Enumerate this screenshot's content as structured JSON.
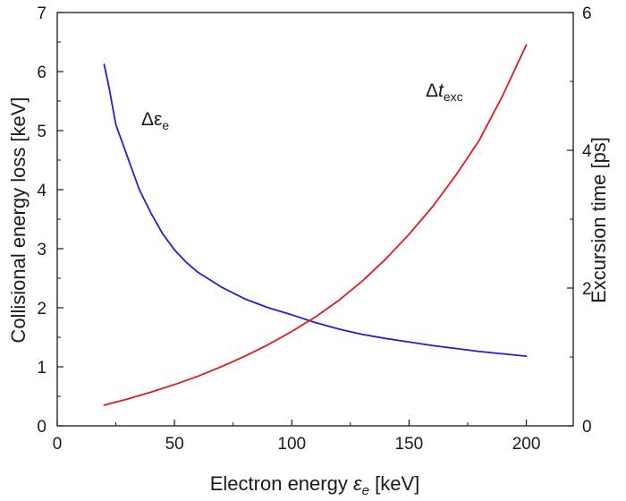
{
  "chart_data": {
    "type": "line",
    "x_axis": {
      "label": "Electron energy",
      "symbol": "ε",
      "symbol_sub": "e",
      "unit": "[keV]",
      "range": [
        0,
        220
      ],
      "ticks": [
        0,
        50,
        100,
        150,
        200
      ],
      "tick_labels": [
        "0",
        "50",
        "100",
        "150",
        "200"
      ]
    },
    "y_left": {
      "label": "Collisional energy loss [keV]",
      "range": [
        0,
        7
      ],
      "ticks": [
        0,
        1,
        2,
        3,
        4,
        5,
        6,
        7
      ],
      "tick_labels": [
        "0",
        "1",
        "2",
        "3",
        "4",
        "5",
        "6",
        "7"
      ]
    },
    "y_right": {
      "label": "Excursion time [ps]",
      "range": [
        0,
        6
      ],
      "ticks": [
        0,
        2,
        4,
        6
      ],
      "tick_labels": [
        "0",
        "2",
        "4",
        "6"
      ]
    },
    "series": [
      {
        "name": "Δε_e",
        "axis": "left",
        "color": "#1f1fd6",
        "x": [
          20,
          22,
          25,
          30,
          35,
          40,
          45,
          50,
          55,
          60,
          70,
          80,
          90,
          100,
          110,
          120,
          130,
          140,
          150,
          160,
          170,
          180,
          190,
          200
        ],
        "y": [
          6.12,
          5.75,
          5.1,
          4.55,
          4.0,
          3.6,
          3.25,
          2.98,
          2.77,
          2.6,
          2.35,
          2.15,
          2.0,
          1.88,
          1.75,
          1.64,
          1.55,
          1.48,
          1.42,
          1.36,
          1.31,
          1.26,
          1.22,
          1.18
        ]
      },
      {
        "name": "Δt_exc",
        "axis": "right",
        "color": "#e11919",
        "x": [
          20,
          30,
          40,
          50,
          60,
          70,
          80,
          90,
          100,
          110,
          120,
          130,
          140,
          150,
          160,
          170,
          180,
          190,
          200
        ],
        "y": [
          0.3,
          0.39,
          0.49,
          0.6,
          0.72,
          0.86,
          1.01,
          1.18,
          1.37,
          1.58,
          1.82,
          2.1,
          2.42,
          2.78,
          3.18,
          3.64,
          4.15,
          4.8,
          5.53
        ]
      }
    ],
    "annotations": [
      {
        "series": "Δε_e",
        "main": "Δε",
        "sub": "e",
        "italic": false
      },
      {
        "series": "Δt_exc",
        "main": "Δ",
        "main_italic": "t",
        "sub": "exc",
        "italic": true
      }
    ]
  }
}
